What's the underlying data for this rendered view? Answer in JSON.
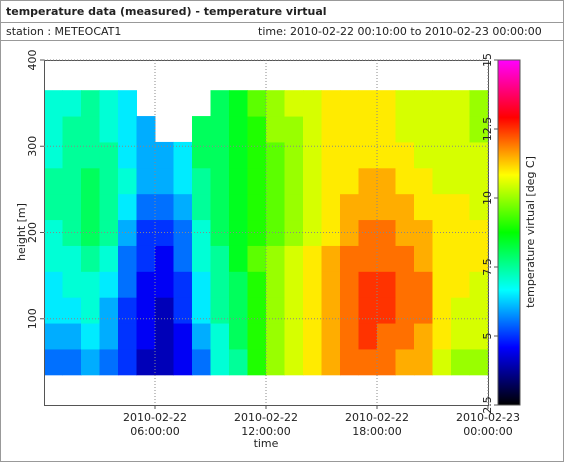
{
  "header": {
    "title": "temperature data (measured) - temperature virtual",
    "station": "station : METEOCAT1",
    "time_range": "time: 2010-02-22 00:10:00 to 2010-02-23 00:00:00"
  },
  "chart_data": {
    "type": "heatmap",
    "x_label": "time",
    "y_label": "height [m]",
    "colorbar_label": "temperature virtual [deg C]",
    "x": [
      0,
      1,
      2,
      3,
      4,
      5,
      6,
      7,
      8,
      9,
      10,
      11,
      12,
      13,
      14,
      15,
      16,
      17,
      18,
      19,
      20,
      21,
      22,
      23
    ],
    "y": [
      50,
      80,
      110,
      140,
      170,
      200,
      230,
      260,
      290,
      320,
      350
    ],
    "z": [
      [
        5.5,
        6,
        6.5,
        6.5,
        7,
        7,
        7.5,
        7.5,
        7,
        7,
        7
      ],
      [
        5.5,
        6,
        6.5,
        7,
        7,
        7.5,
        7.5,
        7.5,
        7.5,
        7.5,
        7
      ],
      [
        6,
        6.5,
        7,
        7,
        7.5,
        8,
        8,
        8,
        7.5,
        7.5,
        7.5
      ],
      [
        5.5,
        6,
        6,
        6.5,
        7,
        7.5,
        7.5,
        7.5,
        7.5,
        7,
        7
      ],
      [
        5,
        5,
        5,
        5.5,
        5.5,
        6,
        6.5,
        7,
        6.5,
        6.5,
        6.5
      ],
      [
        4,
        4.5,
        4.5,
        4.5,
        5,
        5,
        5.5,
        6,
        6,
        6,
        null
      ],
      [
        4,
        4,
        4,
        4.5,
        4.5,
        5,
        5.5,
        6,
        6,
        null,
        null
      ],
      [
        4.5,
        4.5,
        5,
        5,
        5.5,
        5.5,
        6,
        6.5,
        6.5,
        null,
        null
      ],
      [
        5.5,
        6,
        6.5,
        6.5,
        7,
        7,
        7.5,
        7.5,
        8,
        8,
        null
      ],
      [
        7,
        7,
        7.5,
        7.5,
        7.5,
        8,
        8,
        8,
        8,
        8,
        8
      ],
      [
        7.5,
        8,
        8,
        8,
        8.5,
        8.5,
        8.5,
        8.5,
        8.5,
        8.5,
        8.5
      ],
      [
        9,
        9,
        9,
        9,
        9.5,
        9,
        9,
        9,
        9,
        9,
        9.5
      ],
      [
        10,
        10,
        10,
        10,
        10,
        9.5,
        9.5,
        9.5,
        9.5,
        10,
        10
      ],
      [
        10.5,
        10.5,
        10.5,
        10.5,
        10.5,
        10,
        10,
        10,
        10,
        10,
        10.5
      ],
      [
        11,
        11,
        11,
        11,
        11,
        10.5,
        10.5,
        10.5,
        10.5,
        10.5,
        10.5
      ],
      [
        11.5,
        11.5,
        11.5,
        11.5,
        11.5,
        11,
        11,
        11,
        11,
        11,
        11
      ],
      [
        12,
        12,
        12,
        12,
        12,
        11.5,
        11.5,
        11,
        11,
        11,
        11
      ],
      [
        12,
        12.5,
        12.5,
        12.5,
        12,
        12,
        11.5,
        11.5,
        11,
        11,
        11
      ],
      [
        12,
        12,
        12.5,
        12.5,
        12,
        12,
        11.5,
        11.5,
        11,
        11,
        11
      ],
      [
        11.5,
        12,
        12,
        12,
        12,
        11.5,
        11.5,
        11,
        11,
        10.5,
        10.5
      ],
      [
        11.5,
        11.5,
        12,
        12,
        11.5,
        11.5,
        11,
        11,
        10.5,
        10.5,
        10.5
      ],
      [
        10.5,
        11,
        11,
        11,
        11,
        11,
        11,
        10.5,
        10.5,
        10.5,
        10.5
      ],
      [
        10,
        10.5,
        10.5,
        11,
        11,
        11,
        11,
        10.5,
        10.5,
        10.5,
        10.5
      ],
      [
        10,
        10.5,
        10.5,
        10.5,
        11,
        11,
        10.5,
        10.5,
        10.5,
        10,
        10
      ]
    ],
    "xlim": [
      0,
      24
    ],
    "xticks": [
      {
        "value": 6,
        "label": [
          "2010-02-22",
          "06:00:00"
        ]
      },
      {
        "value": 12,
        "label": [
          "2010-02-22",
          "12:00:00"
        ]
      },
      {
        "value": 18,
        "label": [
          "2010-02-22",
          "18:00:00"
        ]
      },
      {
        "value": 24,
        "label": [
          "2010-02-23",
          "00:00:00"
        ]
      }
    ],
    "ylim": [
      0,
      400
    ],
    "yticks": [
      100,
      200,
      300,
      400
    ],
    "zlim": [
      2.5,
      15
    ],
    "zticks": [
      2.5,
      5,
      7.5,
      10,
      12.5,
      15
    ],
    "colormap": [
      "#000000",
      "#0000ff",
      "#00ffff",
      "#00ff00",
      "#ffff00",
      "#ff0000",
      "#ff00ff"
    ],
    "grid": true
  }
}
